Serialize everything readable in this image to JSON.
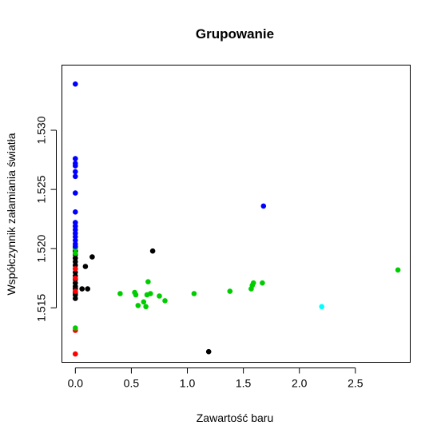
{
  "chart_data": {
    "type": "scatter",
    "title": "Grupowanie",
    "xlabel": "Zawartość baru",
    "ylabel": "Współczynnik załamiania światła",
    "xlim": [
      -0.12,
      2.99
    ],
    "ylim": [
      1.5104,
      1.5355
    ],
    "xticks": [
      0.0,
      0.5,
      1.0,
      1.5,
      2.0,
      2.5
    ],
    "xtick_labels": [
      "0.0",
      "0.5",
      "1.0",
      "1.5",
      "2.0",
      "2.5"
    ],
    "yticks": [
      1.515,
      1.52,
      1.525,
      1.53
    ],
    "ytick_labels": [
      "1.515",
      "1.520",
      "1.525",
      "1.530"
    ],
    "grid": false,
    "marker": "filled-circle",
    "series": [
      {
        "color": "#000000",
        "points": [
          [
            0,
            1.5158
          ],
          [
            0,
            1.5161
          ],
          [
            0,
            1.5163
          ],
          [
            0,
            1.5166
          ],
          [
            0,
            1.5168
          ],
          [
            0,
            1.5171
          ],
          [
            0,
            1.5174
          ],
          [
            0,
            1.5177
          ],
          [
            0,
            1.518
          ],
          [
            0,
            1.5183
          ],
          [
            0,
            1.5186
          ],
          [
            0,
            1.5189
          ],
          [
            0,
            1.5192
          ],
          [
            0,
            1.5195
          ],
          [
            0,
            1.5198
          ],
          [
            0,
            1.5201
          ],
          [
            0.06,
            1.5166
          ],
          [
            0.09,
            1.5185
          ],
          [
            0.11,
            1.5166
          ],
          [
            0.15,
            1.5193
          ],
          [
            0.69,
            1.5198
          ],
          [
            1.19,
            1.5113
          ]
        ]
      },
      {
        "color": "#ff0000",
        "points": [
          [
            0,
            1.5111
          ],
          [
            0,
            1.5131
          ],
          [
            0,
            1.5164
          ],
          [
            0,
            1.5175
          ],
          [
            0,
            1.5183
          ]
        ]
      },
      {
        "color": "#00cd00",
        "points": [
          [
            0,
            1.5133
          ],
          [
            0,
            1.5196
          ],
          [
            0,
            1.52
          ],
          [
            0.4,
            1.5162
          ],
          [
            0.53,
            1.5163
          ],
          [
            0.54,
            1.5161
          ],
          [
            0.56,
            1.5152
          ],
          [
            0.61,
            1.5155
          ],
          [
            0.63,
            1.5151
          ],
          [
            0.64,
            1.5161
          ],
          [
            0.65,
            1.5172
          ],
          [
            0.67,
            1.5162
          ],
          [
            0.75,
            1.516
          ],
          [
            0.8,
            1.5156
          ],
          [
            1.06,
            1.5162
          ],
          [
            1.38,
            1.5164
          ],
          [
            1.57,
            1.5166
          ],
          [
            1.58,
            1.5169
          ],
          [
            1.59,
            1.5171
          ],
          [
            1.67,
            1.5171
          ],
          [
            2.88,
            1.5182
          ]
        ]
      },
      {
        "color": "#0000ff",
        "points": [
          [
            0,
            1.5339
          ],
          [
            0,
            1.5276
          ],
          [
            0,
            1.5272
          ],
          [
            0,
            1.527
          ],
          [
            0,
            1.5265
          ],
          [
            0,
            1.5261
          ],
          [
            0,
            1.5247
          ],
          [
            0,
            1.5231
          ],
          [
            0,
            1.5222
          ],
          [
            0,
            1.5219
          ],
          [
            0,
            1.5216
          ],
          [
            0,
            1.5213
          ],
          [
            0,
            1.521
          ],
          [
            0,
            1.5207
          ],
          [
            0,
            1.5204
          ],
          [
            0,
            1.5202
          ],
          [
            1.68,
            1.5236
          ]
        ]
      },
      {
        "color": "#00ffff",
        "points": [
          [
            2.2,
            1.5151
          ]
        ]
      }
    ]
  }
}
